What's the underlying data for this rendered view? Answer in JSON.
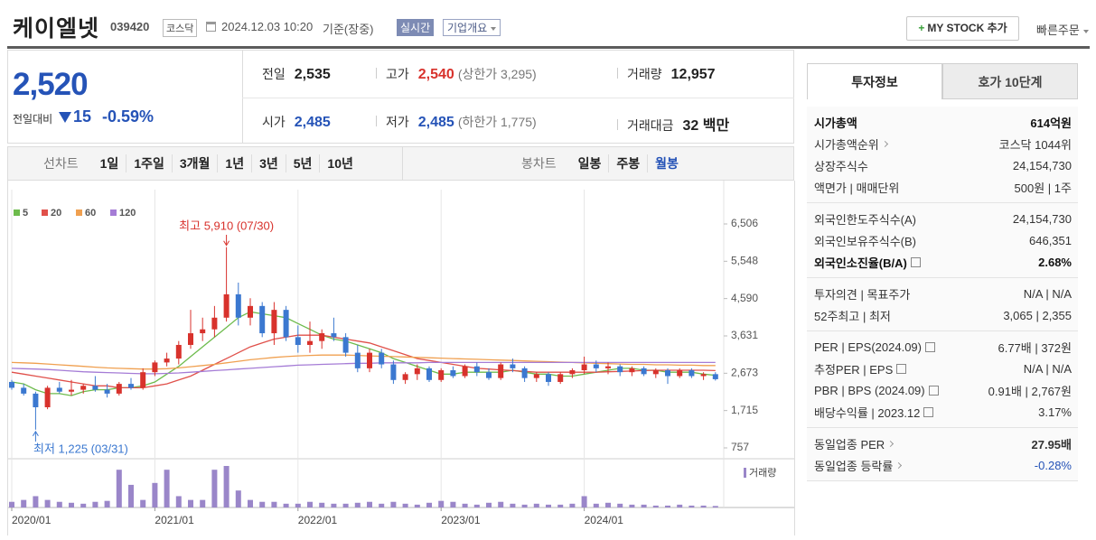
{
  "header": {
    "name": "케이엘넷",
    "code": "039420",
    "market": "코스닥",
    "datetime": "2024.12.03 10:20",
    "basis": "기준(장중)",
    "realtime": "실시간",
    "company_info": "기업개요",
    "my_stock": "MY STOCK 추가",
    "quick_order": "빠른주문"
  },
  "price": {
    "current": "2,520",
    "change_label": "전일대비",
    "change": "15",
    "rate": "-0.59%"
  },
  "quote": [
    [
      {
        "label": "전일",
        "value": "2,535"
      },
      {
        "label": "고가",
        "value": "2,540",
        "sub": "(상한가 3,295)"
      },
      {
        "label": "거래량",
        "value": "12,957"
      }
    ],
    [
      {
        "label": "시가",
        "value": "2,485"
      },
      {
        "label": "저가",
        "value": "2,485",
        "sub": "(하한가 1,775)"
      },
      {
        "label": "거래대금",
        "value": "32 백만"
      }
    ]
  ],
  "toolbar": {
    "line_label": "선차트",
    "line_periods": [
      "1일",
      "1주일",
      "3개월",
      "1년",
      "3년",
      "5년",
      "10년"
    ],
    "candle_label": "봉차트",
    "candle_periods": [
      "일봉",
      "주봉",
      "월봉"
    ]
  },
  "invest_info": {
    "tabs": [
      "투자정보",
      "호가 10단계"
    ],
    "groups": [
      [
        {
          "label": "시가총액",
          "value": "614억원"
        },
        {
          "label": "시가총액순위",
          "value": "코스닥 1044위"
        },
        {
          "label": "상장주식수",
          "value": "24,154,730"
        },
        {
          "label": "액면가 | 매매단위",
          "value": "500원 | 1주"
        }
      ],
      [
        {
          "label": "외국인한도주식수(A)",
          "value": "24,154,730"
        },
        {
          "label": "외국인보유주식수(B)",
          "value": "646,351"
        },
        {
          "label": "외국인소진율(B/A)",
          "value": "2.68%"
        }
      ],
      [
        {
          "label": "투자의견 | 목표주가",
          "value": "N/A | N/A"
        },
        {
          "label": "52주최고 | 최저",
          "value": "3,065 | 2,355"
        }
      ],
      [
        {
          "label": "PER | EPS(2024.09)",
          "value": "6.77배 | 372원"
        },
        {
          "label": "추정PER | EPS",
          "value": "N/A | N/A"
        },
        {
          "label": "PBR | BPS (2024.09)",
          "value": "0.91배 | 2,767원"
        },
        {
          "label": "배당수익률 | 2023.12",
          "value": "3.17%"
        }
      ],
      [
        {
          "label": "동일업종 PER",
          "value": "27.95배"
        },
        {
          "label": "동일업종 등락률",
          "value": "-0.28%"
        }
      ]
    ]
  },
  "chart_data": {
    "type": "candlestick",
    "categories": [
      "2020/01",
      null,
      null,
      null,
      null,
      null,
      null,
      null,
      null,
      null,
      null,
      null,
      "2021/01",
      null,
      null,
      null,
      null,
      null,
      null,
      null,
      null,
      null,
      null,
      null,
      "2022/01",
      null,
      null,
      null,
      null,
      null,
      null,
      null,
      null,
      null,
      null,
      null,
      "2023/01",
      null,
      null,
      null,
      null,
      null,
      null,
      null,
      null,
      null,
      null,
      null,
      "2024/01",
      null,
      null,
      null,
      null,
      null,
      null,
      null,
      null,
      null,
      null,
      null
    ],
    "open": [
      2450,
      2300,
      2150,
      1800,
      2300,
      2200,
      2250,
      2350,
      2250,
      2150,
      2400,
      2300,
      2700,
      2950,
      3050,
      3400,
      3700,
      3800,
      4100,
      4700,
      4100,
      4400,
      3700,
      4300,
      3600,
      3400,
      3500,
      3700,
      3600,
      3200,
      2800,
      3200,
      2900,
      2500,
      2650,
      2800,
      2500,
      2750,
      2600,
      2850,
      2700,
      2550,
      2900,
      2800,
      2550,
      2650,
      2450,
      2650,
      2750,
      2900,
      2800,
      2850,
      2700,
      2800,
      2650,
      2750,
      2600,
      2750,
      2600,
      2650
    ],
    "high": [
      2500,
      2400,
      2200,
      2350,
      2450,
      2500,
      2400,
      2600,
      2400,
      2450,
      2550,
      2800,
      3000,
      3200,
      3500,
      4300,
      4100,
      4400,
      5910,
      5000,
      4600,
      4500,
      4500,
      4400,
      3900,
      4000,
      3800,
      4100,
      3700,
      3400,
      3300,
      3300,
      3000,
      2700,
      2900,
      2850,
      2800,
      2850,
      2900,
      2950,
      2800,
      2950,
      3050,
      2850,
      2700,
      2700,
      2700,
      2800,
      3100,
      3000,
      2950,
      2900,
      2850,
      2850,
      2800,
      2800,
      2800,
      2800,
      2700,
      2700
    ],
    "low": [
      2250,
      2100,
      1225,
      1750,
      2150,
      2100,
      2150,
      2200,
      2050,
      2100,
      2250,
      2250,
      2600,
      2850,
      2900,
      3300,
      3500,
      3600,
      4000,
      3900,
      3900,
      3600,
      3400,
      3500,
      3200,
      3200,
      3300,
      3500,
      3100,
      2700,
      2700,
      2800,
      2400,
      2400,
      2500,
      2450,
      2450,
      2550,
      2550,
      2600,
      2500,
      2500,
      2700,
      2450,
      2450,
      2350,
      2400,
      2550,
      2650,
      2700,
      2650,
      2600,
      2600,
      2600,
      2550,
      2400,
      2550,
      2550,
      2500,
      2485
    ],
    "close": [
      2300,
      2150,
      1800,
      2300,
      2200,
      2250,
      2350,
      2250,
      2150,
      2400,
      2300,
      2700,
      2950,
      3050,
      3400,
      3700,
      3800,
      4100,
      4700,
      4100,
      4400,
      3700,
      4300,
      3600,
      3400,
      3500,
      3700,
      3600,
      3200,
      2800,
      3200,
      2900,
      2500,
      2650,
      2800,
      2500,
      2750,
      2600,
      2850,
      2700,
      2550,
      2900,
      2800,
      2550,
      2650,
      2450,
      2650,
      2750,
      2900,
      2800,
      2850,
      2700,
      2800,
      2650,
      2750,
      2600,
      2750,
      2600,
      2650,
      2520
    ],
    "up_color": "#d8322c",
    "down_color": "#3b78d0",
    "series": [
      {
        "name": "5",
        "color": "#6dbb4c",
        "values": [
          2450,
          2400,
          2250,
          2150,
          2150,
          2100,
          2200,
          2250,
          2250,
          2300,
          2300,
          2350,
          2450,
          2650,
          2850,
          3100,
          3350,
          3600,
          3850,
          4100,
          4250,
          4200,
          4150,
          4100,
          3950,
          3800,
          3650,
          3550,
          3500,
          3400,
          3300,
          3200,
          3050,
          2950,
          2850,
          2750,
          2650,
          2650,
          2700,
          2700,
          2700,
          2700,
          2750,
          2700,
          2650,
          2650,
          2600,
          2600,
          2650,
          2700,
          2750,
          2800,
          2800,
          2750,
          2750,
          2700,
          2700,
          2700,
          2650,
          2620
        ]
      },
      {
        "name": "20",
        "color": "#e0504a",
        "values": [
          2700,
          2650,
          2600,
          2550,
          2500,
          2450,
          2400,
          2350,
          2350,
          2300,
          2300,
          2300,
          2350,
          2400,
          2500,
          2600,
          2750,
          2900,
          3050,
          3200,
          3350,
          3450,
          3550,
          3600,
          3650,
          3650,
          3650,
          3600,
          3550,
          3500,
          3450,
          3350,
          3250,
          3150,
          3050,
          3000,
          2950,
          2900,
          2850,
          2800,
          2780,
          2760,
          2740,
          2720,
          2700,
          2700,
          2700,
          2700,
          2700,
          2700,
          2710,
          2720,
          2730,
          2740,
          2750,
          2750,
          2750,
          2750,
          2750,
          2740
        ]
      },
      {
        "name": "60",
        "color": "#f0a050",
        "values": [
          2950,
          2940,
          2930,
          2910,
          2890,
          2870,
          2850,
          2830,
          2810,
          2800,
          2790,
          2780,
          2780,
          2790,
          2810,
          2840,
          2870,
          2900,
          2940,
          2980,
          3020,
          3050,
          3080,
          3100,
          3120,
          3130,
          3140,
          3140,
          3140,
          3130,
          3120,
          3110,
          3100,
          3090,
          3080,
          3070,
          3060,
          3050,
          3040,
          3030,
          3020,
          3010,
          3000,
          2990,
          2980,
          2970,
          2960,
          2950,
          2940,
          2930,
          2920,
          2910,
          2900,
          2900,
          2890,
          2890,
          2880,
          2880,
          2870,
          2870
        ]
      },
      {
        "name": "120",
        "color": "#a57cd6",
        "values": [
          2800,
          2790,
          2780,
          2770,
          2750,
          2730,
          2710,
          2700,
          2690,
          2680,
          2670,
          2660,
          2660,
          2670,
          2680,
          2700,
          2720,
          2740,
          2760,
          2780,
          2800,
          2820,
          2840,
          2860,
          2880,
          2890,
          2900,
          2910,
          2920,
          2930,
          2930,
          2940,
          2940,
          2940,
          2940,
          2950,
          2950,
          2950,
          2950,
          2950,
          2950,
          2950,
          2950,
          2950,
          2950,
          2950,
          2950,
          2950,
          2950,
          2950,
          2950,
          2950,
          2950,
          2950,
          2950,
          2950,
          2950,
          2950,
          2950,
          2950
        ]
      }
    ],
    "volume": {
      "name": "거래량",
      "color": "#9a86c9",
      "values": [
        30,
        40,
        60,
        40,
        30,
        25,
        20,
        30,
        35,
        200,
        120,
        40,
        130,
        200,
        60,
        40,
        40,
        200,
        220,
        90,
        40,
        30,
        30,
        20,
        20,
        30,
        25,
        20,
        20,
        25,
        30,
        20,
        30,
        20,
        15,
        25,
        35,
        30,
        20,
        15,
        25,
        30,
        20,
        15,
        20,
        15,
        15,
        20,
        60,
        20,
        25,
        20,
        15,
        15,
        10,
        10,
        15,
        10,
        10,
        8
      ]
    },
    "ylim": [
      548,
      7271
    ],
    "yticks": [
      757,
      {
        "value": 1715,
        "label": "1,715"
      },
      {
        "value": 2673,
        "label": "2,673"
      },
      {
        "value": 3631,
        "label": "3,631"
      },
      {
        "value": 4590,
        "label": "4,590"
      },
      {
        "value": 5548,
        "label": "5,548"
      },
      {
        "value": 6506,
        "label": "6,506"
      }
    ],
    "annotations": [
      {
        "text": "최고 5,910 (07/30)",
        "color": "#d8322c"
      },
      {
        "text": "최저 1,225 (03/31)",
        "color": "#3b78d0"
      }
    ],
    "grid": true
  }
}
